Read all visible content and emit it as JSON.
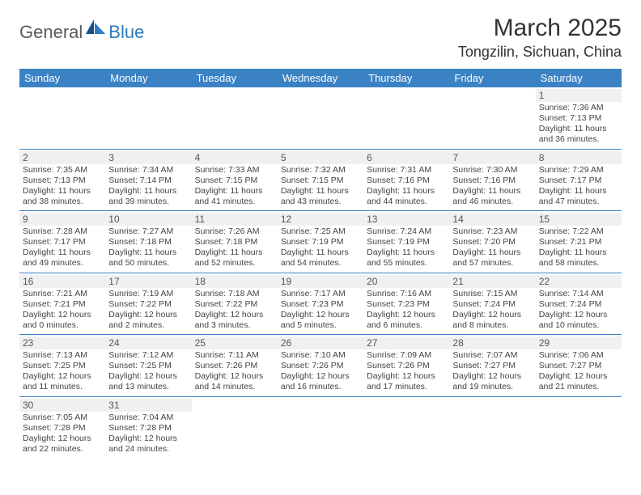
{
  "logo": {
    "general": "General",
    "blue": "Blue"
  },
  "title": "March 2025",
  "location": "Tongzilin, Sichuan, China",
  "header_color": "#3b82c4",
  "rule_color": "#3b82c4",
  "daynum_bg": "#eef0f1",
  "dow": [
    "Sunday",
    "Monday",
    "Tuesday",
    "Wednesday",
    "Thursday",
    "Friday",
    "Saturday"
  ],
  "weeks": [
    [
      null,
      null,
      null,
      null,
      null,
      null,
      {
        "n": "1",
        "sr": "7:36 AM",
        "ss": "7:13 PM",
        "dl": "11 hours and 36 minutes."
      }
    ],
    [
      {
        "n": "2",
        "sr": "7:35 AM",
        "ss": "7:13 PM",
        "dl": "11 hours and 38 minutes."
      },
      {
        "n": "3",
        "sr": "7:34 AM",
        "ss": "7:14 PM",
        "dl": "11 hours and 39 minutes."
      },
      {
        "n": "4",
        "sr": "7:33 AM",
        "ss": "7:15 PM",
        "dl": "11 hours and 41 minutes."
      },
      {
        "n": "5",
        "sr": "7:32 AM",
        "ss": "7:15 PM",
        "dl": "11 hours and 43 minutes."
      },
      {
        "n": "6",
        "sr": "7:31 AM",
        "ss": "7:16 PM",
        "dl": "11 hours and 44 minutes."
      },
      {
        "n": "7",
        "sr": "7:30 AM",
        "ss": "7:16 PM",
        "dl": "11 hours and 46 minutes."
      },
      {
        "n": "8",
        "sr": "7:29 AM",
        "ss": "7:17 PM",
        "dl": "11 hours and 47 minutes."
      }
    ],
    [
      {
        "n": "9",
        "sr": "7:28 AM",
        "ss": "7:17 PM",
        "dl": "11 hours and 49 minutes."
      },
      {
        "n": "10",
        "sr": "7:27 AM",
        "ss": "7:18 PM",
        "dl": "11 hours and 50 minutes."
      },
      {
        "n": "11",
        "sr": "7:26 AM",
        "ss": "7:18 PM",
        "dl": "11 hours and 52 minutes."
      },
      {
        "n": "12",
        "sr": "7:25 AM",
        "ss": "7:19 PM",
        "dl": "11 hours and 54 minutes."
      },
      {
        "n": "13",
        "sr": "7:24 AM",
        "ss": "7:19 PM",
        "dl": "11 hours and 55 minutes."
      },
      {
        "n": "14",
        "sr": "7:23 AM",
        "ss": "7:20 PM",
        "dl": "11 hours and 57 minutes."
      },
      {
        "n": "15",
        "sr": "7:22 AM",
        "ss": "7:21 PM",
        "dl": "11 hours and 58 minutes."
      }
    ],
    [
      {
        "n": "16",
        "sr": "7:21 AM",
        "ss": "7:21 PM",
        "dl": "12 hours and 0 minutes."
      },
      {
        "n": "17",
        "sr": "7:19 AM",
        "ss": "7:22 PM",
        "dl": "12 hours and 2 minutes."
      },
      {
        "n": "18",
        "sr": "7:18 AM",
        "ss": "7:22 PM",
        "dl": "12 hours and 3 minutes."
      },
      {
        "n": "19",
        "sr": "7:17 AM",
        "ss": "7:23 PM",
        "dl": "12 hours and 5 minutes."
      },
      {
        "n": "20",
        "sr": "7:16 AM",
        "ss": "7:23 PM",
        "dl": "12 hours and 6 minutes."
      },
      {
        "n": "21",
        "sr": "7:15 AM",
        "ss": "7:24 PM",
        "dl": "12 hours and 8 minutes."
      },
      {
        "n": "22",
        "sr": "7:14 AM",
        "ss": "7:24 PM",
        "dl": "12 hours and 10 minutes."
      }
    ],
    [
      {
        "n": "23",
        "sr": "7:13 AM",
        "ss": "7:25 PM",
        "dl": "12 hours and 11 minutes."
      },
      {
        "n": "24",
        "sr": "7:12 AM",
        "ss": "7:25 PM",
        "dl": "12 hours and 13 minutes."
      },
      {
        "n": "25",
        "sr": "7:11 AM",
        "ss": "7:26 PM",
        "dl": "12 hours and 14 minutes."
      },
      {
        "n": "26",
        "sr": "7:10 AM",
        "ss": "7:26 PM",
        "dl": "12 hours and 16 minutes."
      },
      {
        "n": "27",
        "sr": "7:09 AM",
        "ss": "7:26 PM",
        "dl": "12 hours and 17 minutes."
      },
      {
        "n": "28",
        "sr": "7:07 AM",
        "ss": "7:27 PM",
        "dl": "12 hours and 19 minutes."
      },
      {
        "n": "29",
        "sr": "7:06 AM",
        "ss": "7:27 PM",
        "dl": "12 hours and 21 minutes."
      }
    ],
    [
      {
        "n": "30",
        "sr": "7:05 AM",
        "ss": "7:28 PM",
        "dl": "12 hours and 22 minutes."
      },
      {
        "n": "31",
        "sr": "7:04 AM",
        "ss": "7:28 PM",
        "dl": "12 hours and 24 minutes."
      },
      null,
      null,
      null,
      null,
      null
    ]
  ],
  "labels": {
    "sunrise": "Sunrise: ",
    "sunset": "Sunset: ",
    "daylight": "Daylight: "
  }
}
